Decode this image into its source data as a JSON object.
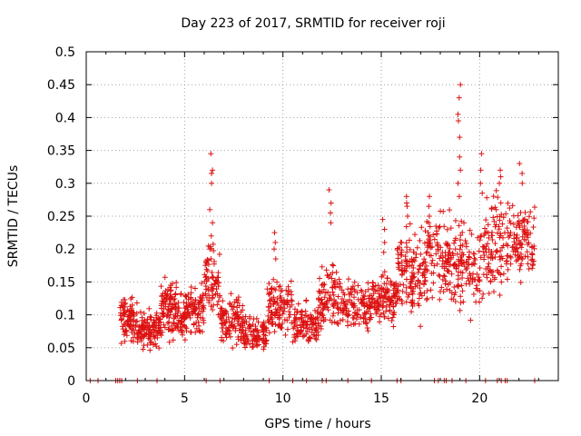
{
  "chart_data": {
    "type": "scatter",
    "title": "Day 223 of 2017, SRMTID for receiver roji",
    "xlabel": "GPS time / hours",
    "ylabel": "SRMTID / TECUs",
    "xlim": [
      0,
      24
    ],
    "ylim": [
      0,
      0.5
    ],
    "x_ticks": [
      0,
      5,
      10,
      15,
      20
    ],
    "x_tick_labels": [
      "0",
      "5",
      "10",
      "15",
      "20"
    ],
    "y_ticks": [
      0,
      0.05,
      0.1,
      0.15,
      0.2,
      0.25,
      0.3,
      0.35,
      0.4,
      0.45,
      0.5
    ],
    "y_tick_labels": [
      "0",
      "0.05",
      "0.1",
      "0.15",
      "0.2",
      "0.25",
      "0.3",
      "0.35",
      "0.4",
      "0.45",
      "0.5"
    ],
    "grid": true,
    "marker": "+",
    "color": "#dd1111",
    "clusters": [
      {
        "x": [
          1.7,
          2.6
        ],
        "y_low": 0.045,
        "y_high": 0.13,
        "n": 90
      },
      {
        "x": [
          2.6,
          3.8
        ],
        "y_low": 0.04,
        "y_high": 0.11,
        "n": 120
      },
      {
        "x": [
          3.8,
          4.6
        ],
        "y_low": 0.05,
        "y_high": 0.16,
        "n": 100
      },
      {
        "x": [
          4.6,
          5.2
        ],
        "y_low": 0.05,
        "y_high": 0.14,
        "n": 60
      },
      {
        "x": [
          5.2,
          6.0
        ],
        "y_low": 0.06,
        "y_high": 0.15,
        "n": 70
      },
      {
        "x": [
          6.0,
          6.8
        ],
        "y_low": 0.08,
        "y_high": 0.21,
        "n": 70
      },
      {
        "x": [
          6.8,
          8.0
        ],
        "y_low": 0.035,
        "y_high": 0.13,
        "n": 110
      },
      {
        "x": [
          8.0,
          9.2
        ],
        "y_low": 0.03,
        "y_high": 0.1,
        "n": 100
      },
      {
        "x": [
          9.2,
          10.5
        ],
        "y_low": 0.05,
        "y_high": 0.16,
        "n": 110
      },
      {
        "x": [
          10.5,
          11.8
        ],
        "y_low": 0.04,
        "y_high": 0.12,
        "n": 110
      },
      {
        "x": [
          11.8,
          13.0
        ],
        "y_low": 0.06,
        "y_high": 0.18,
        "n": 100
      },
      {
        "x": [
          13.0,
          14.5
        ],
        "y_low": 0.06,
        "y_high": 0.16,
        "n": 120
      },
      {
        "x": [
          14.5,
          15.8
        ],
        "y_low": 0.07,
        "y_high": 0.17,
        "n": 120
      },
      {
        "x": [
          15.8,
          17.2
        ],
        "y_low": 0.07,
        "y_high": 0.24,
        "n": 130
      },
      {
        "x": [
          17.2,
          18.5
        ],
        "y_low": 0.1,
        "y_high": 0.26,
        "n": 110
      },
      {
        "x": [
          18.5,
          20.2
        ],
        "y_low": 0.08,
        "y_high": 0.25,
        "n": 130
      },
      {
        "x": [
          20.2,
          21.2
        ],
        "y_low": 0.1,
        "y_high": 0.3,
        "n": 90
      },
      {
        "x": [
          21.2,
          22.8
        ],
        "y_low": 0.13,
        "y_high": 0.28,
        "n": 120
      }
    ],
    "spikes": [
      {
        "x": 6.35,
        "y": [
          0.345,
          0.32,
          0.315,
          0.3,
          0.26,
          0.24,
          0.22,
          0.2
        ]
      },
      {
        "x": 9.6,
        "y": [
          0.225,
          0.21,
          0.2,
          0.185
        ]
      },
      {
        "x": 12.4,
        "y": [
          0.29,
          0.27,
          0.255,
          0.24
        ]
      },
      {
        "x": 15.1,
        "y": [
          0.245,
          0.23,
          0.21,
          0.195
        ]
      },
      {
        "x": 16.3,
        "y": [
          0.28,
          0.27,
          0.265,
          0.25
        ]
      },
      {
        "x": 17.4,
        "y": [
          0.28,
          0.265,
          0.25,
          0.24
        ]
      },
      {
        "x": 18.95,
        "y": [
          0.45,
          0.43,
          0.405,
          0.395,
          0.37,
          0.34,
          0.32,
          0.3,
          0.28
        ]
      },
      {
        "x": 20.1,
        "y": [
          0.345,
          0.32,
          0.3,
          0.285
        ]
      },
      {
        "x": 21.0,
        "y": [
          0.32,
          0.31,
          0.3
        ]
      },
      {
        "x": 22.1,
        "y": [
          0.33,
          0.315,
          0.3
        ]
      }
    ],
    "zero_markers_x": [
      0.2,
      0.6,
      1.5,
      1.6,
      1.7,
      1.8,
      2.6,
      3.6,
      6.1,
      6.8,
      9.3,
      10.5,
      11.2,
      12.0,
      12.2,
      13.3,
      14.5,
      15.8,
      16.0,
      17.7,
      17.9,
      18.2,
      18.3,
      18.6,
      19.3,
      20.3,
      20.9,
      21.1,
      21.3,
      21.4,
      22.8
    ]
  }
}
